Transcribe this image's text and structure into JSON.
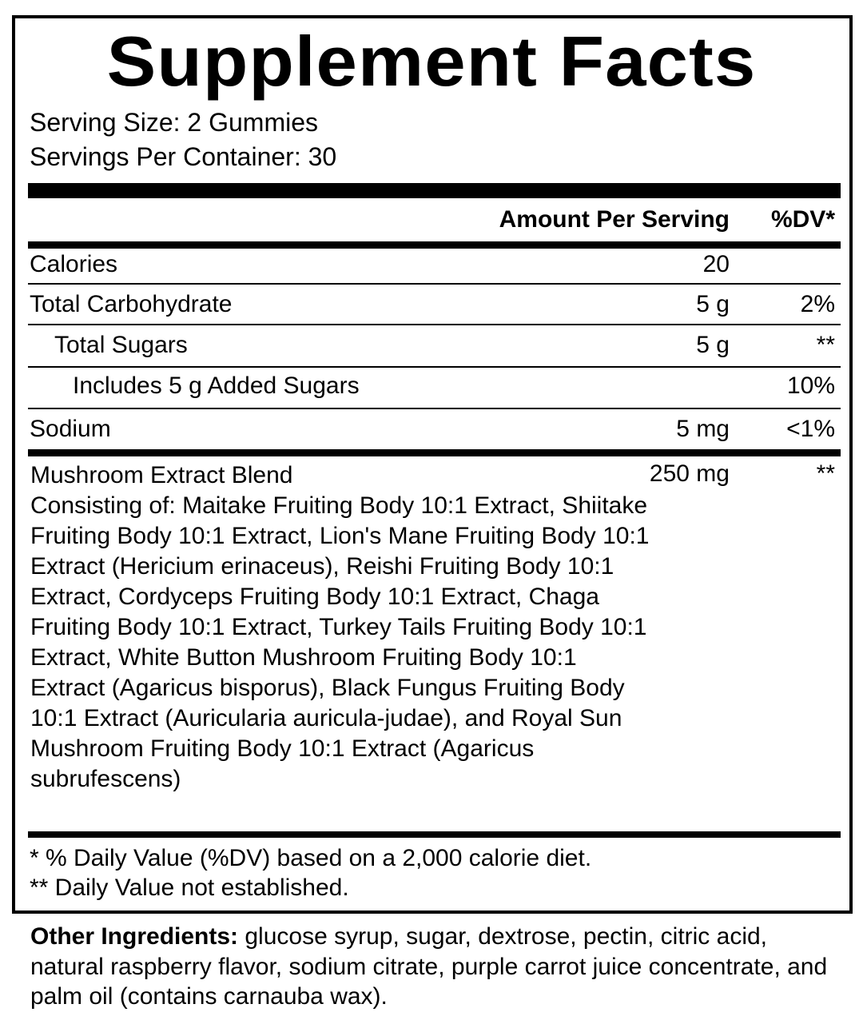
{
  "title": "Supplement Facts",
  "serving_size": "Serving Size: 2 Gummies",
  "servings_per_container": "Servings Per Container: 30",
  "header": {
    "amount": "Amount Per Serving",
    "dv": "%DV*"
  },
  "rows": [
    {
      "name": "Calories",
      "amount": "20",
      "dv": ""
    },
    {
      "name": "Total Carbohydrate",
      "amount": "5 g",
      "dv": "2%"
    },
    {
      "name": "Total Sugars",
      "amount": "5 g",
      "dv": "**"
    },
    {
      "name": "Includes 5 g Added Sugars",
      "amount": "",
      "dv": "10%"
    },
    {
      "name": "Sodium",
      "amount": "5 mg",
      "dv": "<1%"
    }
  ],
  "blend": {
    "name": "Mushroom Extract Blend",
    "amount": "250 mg",
    "dv": "**",
    "description": "Consisting of: Maitake Fruiting Body 10:1 Extract, Shiitake Fruiting Body 10:1 Extract, Lion's Mane Fruiting Body 10:1 Extract (Hericium erinaceus), Reishi Fruiting Body 10:1 Extract, Cordyceps Fruiting Body 10:1 Extract, Chaga Fruiting Body 10:1 Extract, Turkey Tails Fruiting Body 10:1 Extract, White Button Mushroom Fruiting Body 10:1 Extract (Agaricus bisporus), Black Fungus Fruiting Body 10:1 Extract (Auricularia auricula-judae), and Royal Sun Mushroom Fruiting Body 10:1 Extract (Agaricus subrufescens)"
  },
  "footnotes": [
    "* % Daily Value (%DV) based on a 2,000 calorie diet.",
    "** Daily Value not established."
  ],
  "other_ingredients": {
    "label": "Other Ingredients:",
    "text": " glucose syrup, sugar, dextrose, pectin, citric acid, natural raspberry flavor, sodium citrate, purple carrot juice concentrate, and palm oil (contains carnauba wax)."
  }
}
